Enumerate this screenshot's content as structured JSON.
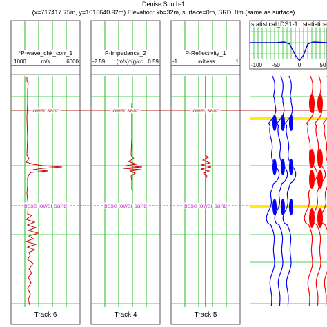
{
  "well": {
    "name": "Denise South-1",
    "info": "(x=717417.75m, y=1015640.92m) Elevation: kb=32m, surface=0m, SRD: 0m (same as surface)"
  },
  "tracks": [
    {
      "log_name": "*P-wave_chk_corr_1",
      "unit": "m/s",
      "min": "1000",
      "max": "6000",
      "footer": "Track 6"
    },
    {
      "log_name": "P-Impedance_2",
      "unit": "(m/s)*(g/cc",
      "min": "-2.59",
      "max": "0.59",
      "footer": "Track 4"
    },
    {
      "log_name": "P-Reflectivity_1",
      "unit": "unitless",
      "min": "-1",
      "max": "1",
      "footer": "Track 5"
    }
  ],
  "markers": [
    {
      "name": "lower sand",
      "color": "#b22222"
    },
    {
      "name": "base lower sand",
      "color": "#cc33cc"
    }
  ],
  "synthetic": {
    "title": "statistical_DS1-1 : statistical",
    "ticks": [
      "-100",
      "-50",
      "0",
      "50"
    ],
    "positive_fill": "#ff0000",
    "negative_fill": "#0000ff"
  },
  "colors": {
    "grid": "#22bb22",
    "log_curve": "#cc0000",
    "horizon": "#ffee00"
  }
}
